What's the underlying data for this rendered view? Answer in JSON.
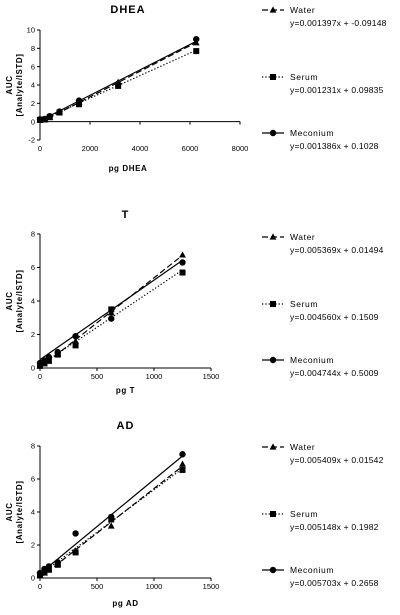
{
  "chart_data": [
    {
      "type": "scatter",
      "title": "DHEA",
      "xlabel": "pg DHEA",
      "ylabel": [
        "AUC",
        "[Analyte/ISTD]"
      ],
      "xlim": [
        0,
        8000
      ],
      "ylim": [
        -2,
        10
      ],
      "xticks": [
        0,
        2000,
        4000,
        6000,
        8000
      ],
      "yticks": [
        -2,
        0,
        2,
        4,
        6,
        8,
        10
      ],
      "x": [
        0,
        195,
        390,
        780,
        1560,
        3125,
        6250
      ],
      "series": [
        {
          "name": "Water",
          "marker": "triangle",
          "line": "dashed",
          "slope": 0.001397,
          "intercept": -0.09148,
          "equation": "y=0.001397x + -0.09148",
          "values": [
            0.15,
            0.2,
            0.45,
            1.0,
            2.1,
            4.3,
            8.6
          ]
        },
        {
          "name": "Serum",
          "marker": "square",
          "line": "dotted",
          "slope": 0.001231,
          "intercept": 0.09835,
          "equation": "y=0.001231x + 0.09835",
          "values": [
            0.2,
            0.25,
            0.5,
            1.0,
            1.9,
            3.9,
            7.7
          ]
        },
        {
          "name": "Meconium",
          "marker": "circle",
          "line": "solid",
          "slope": 0.001386,
          "intercept": 0.1028,
          "equation": "y=0.001386x + 0.1028",
          "values": [
            0.25,
            0.3,
            0.6,
            1.1,
            2.3,
            4.1,
            9.0
          ]
        }
      ]
    },
    {
      "type": "scatter",
      "title": "T",
      "xlabel": "pg T",
      "ylabel": [
        "AUC",
        "[Analyte/ISTD]"
      ],
      "xlim": [
        0,
        1500
      ],
      "ylim": [
        0,
        8
      ],
      "xticks": [
        0,
        500,
        1000,
        1500
      ],
      "yticks": [
        0,
        2,
        4,
        6,
        8
      ],
      "x": [
        0,
        39,
        78,
        156,
        312,
        625,
        1250
      ],
      "series": [
        {
          "name": "Water",
          "marker": "triangle",
          "line": "dashed",
          "slope": 0.005369,
          "intercept": 0.01494,
          "equation": "y=0.005369x + 0.01494",
          "values": [
            0.1,
            0.25,
            0.4,
            0.85,
            1.6,
            3.3,
            6.75
          ]
        },
        {
          "name": "Serum",
          "marker": "square",
          "line": "dotted",
          "slope": 0.00456,
          "intercept": 0.1509,
          "equation": "y=0.004560x + 0.1509",
          "values": [
            0.15,
            0.3,
            0.45,
            0.8,
            1.35,
            3.5,
            5.7
          ]
        },
        {
          "name": "Meconium",
          "marker": "circle",
          "line": "solid",
          "slope": 0.004744,
          "intercept": 0.5009,
          "equation": "y=0.004744x + 0.5009",
          "values": [
            0.3,
            0.45,
            0.65,
            0.95,
            1.9,
            2.95,
            6.3
          ]
        }
      ]
    },
    {
      "type": "scatter",
      "title": "AD",
      "xlabel": "pg AD",
      "ylabel": [
        "AUC",
        "[Analyte/ISTD]"
      ],
      "xlim": [
        0,
        1500
      ],
      "ylim": [
        0,
        8
      ],
      "xticks": [
        0,
        500,
        1000,
        1500
      ],
      "yticks": [
        0,
        2,
        4,
        6,
        8
      ],
      "x": [
        0,
        39,
        78,
        156,
        312,
        625,
        1250
      ],
      "series": [
        {
          "name": "Water",
          "marker": "triangle",
          "line": "dashed",
          "slope": 0.005409,
          "intercept": 0.01542,
          "equation": "y=0.005409x + 0.01542",
          "values": [
            0.15,
            0.3,
            0.5,
            0.85,
            1.65,
            3.15,
            6.9
          ]
        },
        {
          "name": "Serum",
          "marker": "square",
          "line": "dotted",
          "slope": 0.005148,
          "intercept": 0.1982,
          "equation": "y=0.005148x + 0.1982",
          "values": [
            0.2,
            0.35,
            0.5,
            0.8,
            1.55,
            3.55,
            6.55
          ]
        },
        {
          "name": "Meconium",
          "marker": "circle",
          "line": "solid",
          "slope": 0.005703,
          "intercept": 0.2658,
          "equation": "y=0.005703x + 0.2658",
          "values": [
            0.3,
            0.55,
            0.7,
            0.95,
            2.7,
            3.7,
            7.5
          ]
        }
      ]
    }
  ]
}
